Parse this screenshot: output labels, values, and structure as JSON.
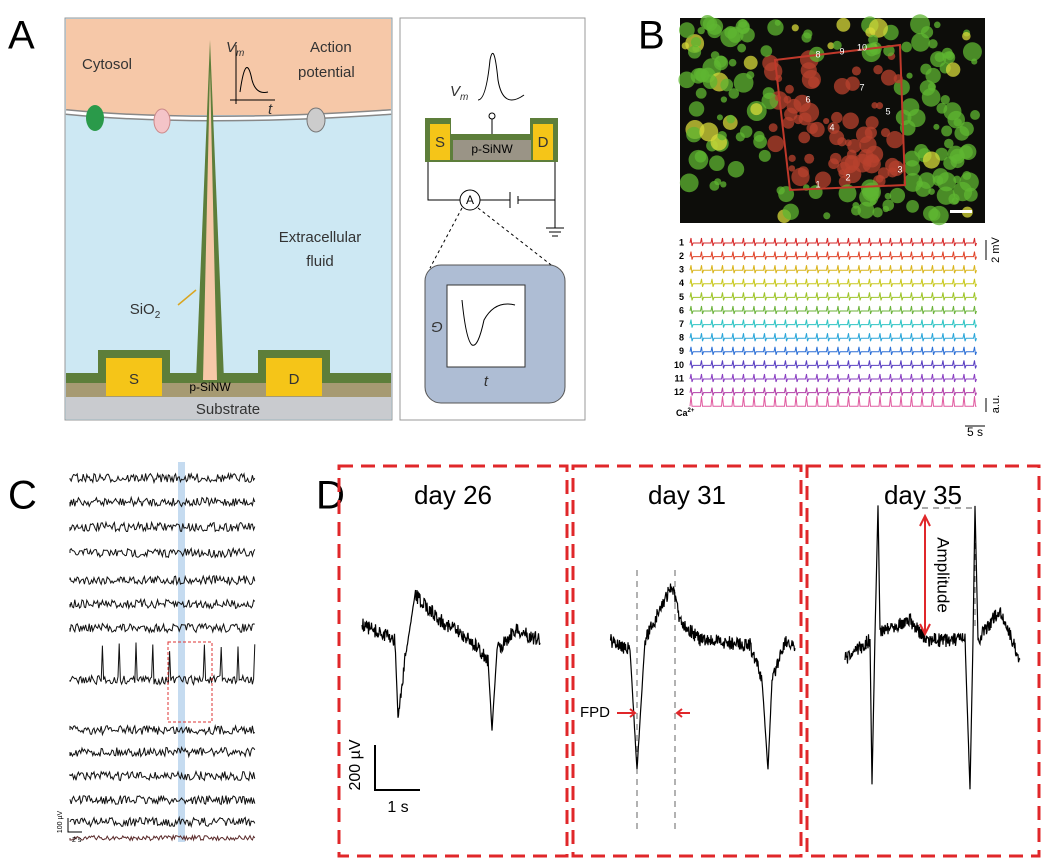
{
  "panels": {
    "A": {
      "label": "A",
      "cytosol": "Cytosol",
      "vm": {
        "v": "V",
        "sub": "m"
      },
      "t": "t",
      "action": "Action",
      "potential": "potential",
      "extracellular": "Extracellular",
      "fluid": "fluid",
      "sio2": {
        "main": "SiO",
        "sub": "2"
      },
      "s": "S",
      "nanowire": "p-SiNW",
      "d": "D",
      "substrate": "Substrate",
      "inset": {
        "vm": {
          "v": "V",
          "sub": "m"
        },
        "s": "S",
        "nanowire": "p-SiNW",
        "d": "D",
        "ammeter": "A",
        "g": "G",
        "t": "t"
      }
    },
    "B": {
      "label": "B",
      "image_labels": [
        "1",
        "2",
        "3",
        "4",
        "5",
        "6",
        "7",
        "8",
        "9",
        "10"
      ],
      "rows": [
        "1",
        "2",
        "3",
        "4",
        "5",
        "6",
        "7",
        "8",
        "9",
        "10",
        "11",
        "12"
      ],
      "ca": {
        "main": "Ca",
        "sup": "2+"
      },
      "mv": "2 mV",
      "au": "a.u.",
      "seconds": "5 s"
    },
    "C": {
      "label": "C",
      "uv": "100 µV",
      "seconds": "2 s"
    },
    "D": {
      "label": "D",
      "days": [
        "day 26",
        "day 31",
        "day 35"
      ],
      "uv": "200 µV",
      "seconds": "1 s",
      "fpd": "FPD",
      "amplitude": "Amplitude"
    }
  }
}
